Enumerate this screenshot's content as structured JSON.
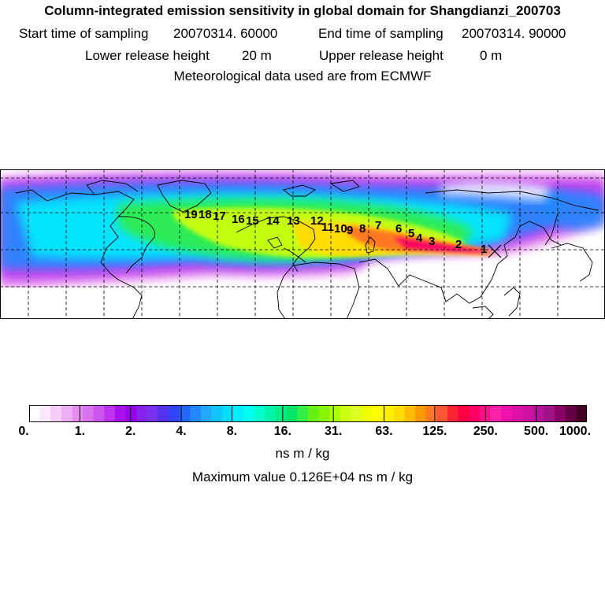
{
  "header": {
    "title": "Column-integrated emission sensitivity in global domain for Shangdianzi_200703",
    "start_label": "Start time of sampling",
    "start_value": "20070314. 60000",
    "end_label": "End time of sampling",
    "end_value": "20070314. 90000",
    "lower_label": "Lower release height",
    "lower_value": "20 m",
    "upper_label": "Upper release height",
    "upper_value": "0 m",
    "met_line": "Meteorological data used are from ECMWF"
  },
  "map": {
    "trajectory_labels": [
      "1",
      "2",
      "3",
      "4",
      "5",
      "6",
      "7",
      "8",
      "9",
      "10",
      "11",
      "12",
      "13",
      "14",
      "15",
      "16",
      "17",
      "18",
      "19"
    ]
  },
  "colorbar": {
    "tick_labels": [
      "0.",
      "1.",
      "2.",
      "4.",
      "8.",
      "16.",
      "31.",
      "63.",
      "125.",
      "250.",
      "500.",
      "1000."
    ],
    "colors": [
      "#ffffff",
      "#fce8fc",
      "#f5ccf7",
      "#eeaef4",
      "#e68ef0",
      "#d872ee",
      "#cc55ee",
      "#bb33ee",
      "#a811ee",
      "#9900ee",
      "#8822ee",
      "#7733ee",
      "#5533ee",
      "#3344ff",
      "#2266ff",
      "#2288ff",
      "#22a8ff",
      "#11c4ff",
      "#00ddff",
      "#00eeff",
      "#00ffee",
      "#00ffcc",
      "#00f5aa",
      "#00ee88",
      "#00e566",
      "#33ee44",
      "#66f011",
      "#88f500",
      "#aaff00",
      "#ccff11",
      "#ddff22",
      "#eeff00",
      "#ffff00",
      "#ffee00",
      "#ffdd00",
      "#ffbb00",
      "#ff9900",
      "#ff7722",
      "#ff5533",
      "#ff2233",
      "#ff0044",
      "#ff0066",
      "#ff1188",
      "#ff22aa",
      "#ee11aa",
      "#dd11a8",
      "#cc11a0",
      "#b8119a",
      "#a01188",
      "#880066",
      "#660044",
      "#440022"
    ],
    "units": "ns m / kg",
    "max_text": "Maximum value  0.126E+04 ns m / kg"
  }
}
